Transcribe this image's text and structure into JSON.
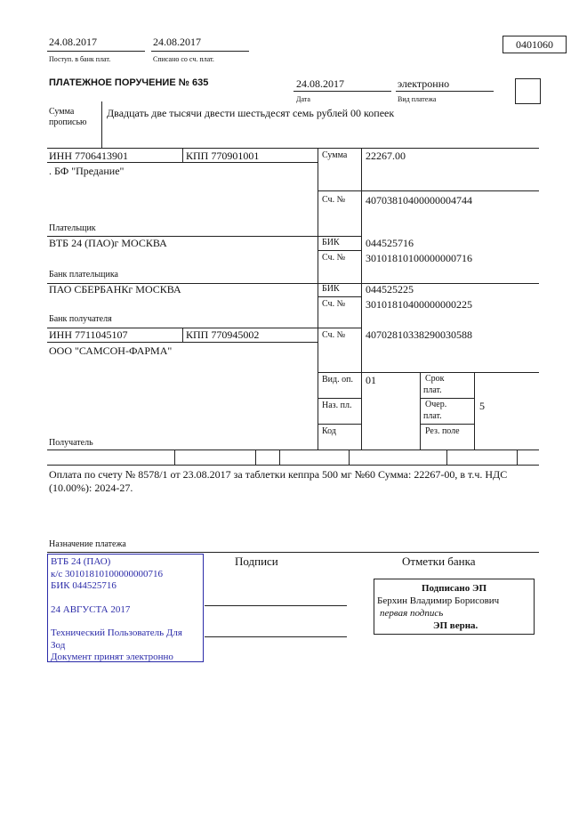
{
  "header": {
    "received_date": "24.08.2017",
    "received_label": "Поступ. в банк плат.",
    "debited_date": "24.08.2017",
    "debited_label": "Списано со сч. плат.",
    "form_code": "0401060"
  },
  "order": {
    "title": "ПЛАТЕЖНОЕ ПОРУЧЕНИЕ № 635",
    "date": "24.08.2017",
    "date_label": "Дата",
    "payment_type": "электронно",
    "payment_type_label": "Вид платежа"
  },
  "amount_words": {
    "label_1": "Сумма",
    "label_2": "прописью",
    "value": "Двадцать две тысячи двести шестьдесят семь рублей 00 копеек"
  },
  "payer": {
    "inn": "ИНН 7706413901",
    "kpp": "КПП 770901001",
    "name": ". БФ \"Предание\"",
    "label": "Плательщик",
    "sum_label": "Сумма",
    "sum": "22267.00",
    "account_label": "Сч. №",
    "account": "40703810400000004744"
  },
  "payer_bank": {
    "name": "ВТБ 24 (ПАО)г МОСКВА",
    "label": "Банк плательщика",
    "bik_label": "БИК",
    "bik": "044525716",
    "account_label": "Сч. №",
    "account": "30101810100000000716"
  },
  "payee_bank": {
    "name": "ПАО СБЕРБАНКг МОСКВА",
    "label": "Банк получателя",
    "bik_label": "БИК",
    "bik": "044525225",
    "account_label": "Сч. №",
    "account": "30101810400000000225"
  },
  "payee": {
    "inn": "ИНН 7711045107",
    "kpp": "КПП 770945002",
    "name": "ООО \"САМСОН-ФАРМА\"",
    "label": "Получатель",
    "account_label": "Сч. №",
    "account": "40702810338290030588"
  },
  "codes": {
    "op_type_label": "Вид. оп.",
    "op_type": "01",
    "purpose_code_label": "Наз. пл.",
    "code_label": "Код",
    "term_label_1": "Срок",
    "term_label_2": "плат.",
    "priority_label_1": "Очер.",
    "priority_label_2": "плат.",
    "priority": "5",
    "reserve_label": "Рез. поле"
  },
  "purpose": {
    "line_1": "Оплата по счету № 8578/1 от 23.08.2017 за таблетки кеппра 500 мг №60 Сумма: 22267-00, в т.ч. НДС",
    "line_2": "(10.00%): 2024-27.",
    "label": "Назначение платежа"
  },
  "signatures": {
    "label": "Подписи",
    "bank_marks_label": "Отметки банка"
  },
  "stamp": {
    "color": "#2a2aa8",
    "line_1": "ВТБ 24 (ПАО)",
    "line_2": "к/с 30101810100000000716",
    "line_3": "БИК 044525716",
    "line_4": "24 АВГУСТА 2017",
    "line_5": "Технический Пользователь Для",
    "line_6": "Зод",
    "line_7": "Документ принят электронно"
  },
  "bank_signature": {
    "title": "Подписано ЭП",
    "signer": "Берхин Владимир Борисович",
    "role": "первая подпись",
    "status": "ЭП верна."
  }
}
